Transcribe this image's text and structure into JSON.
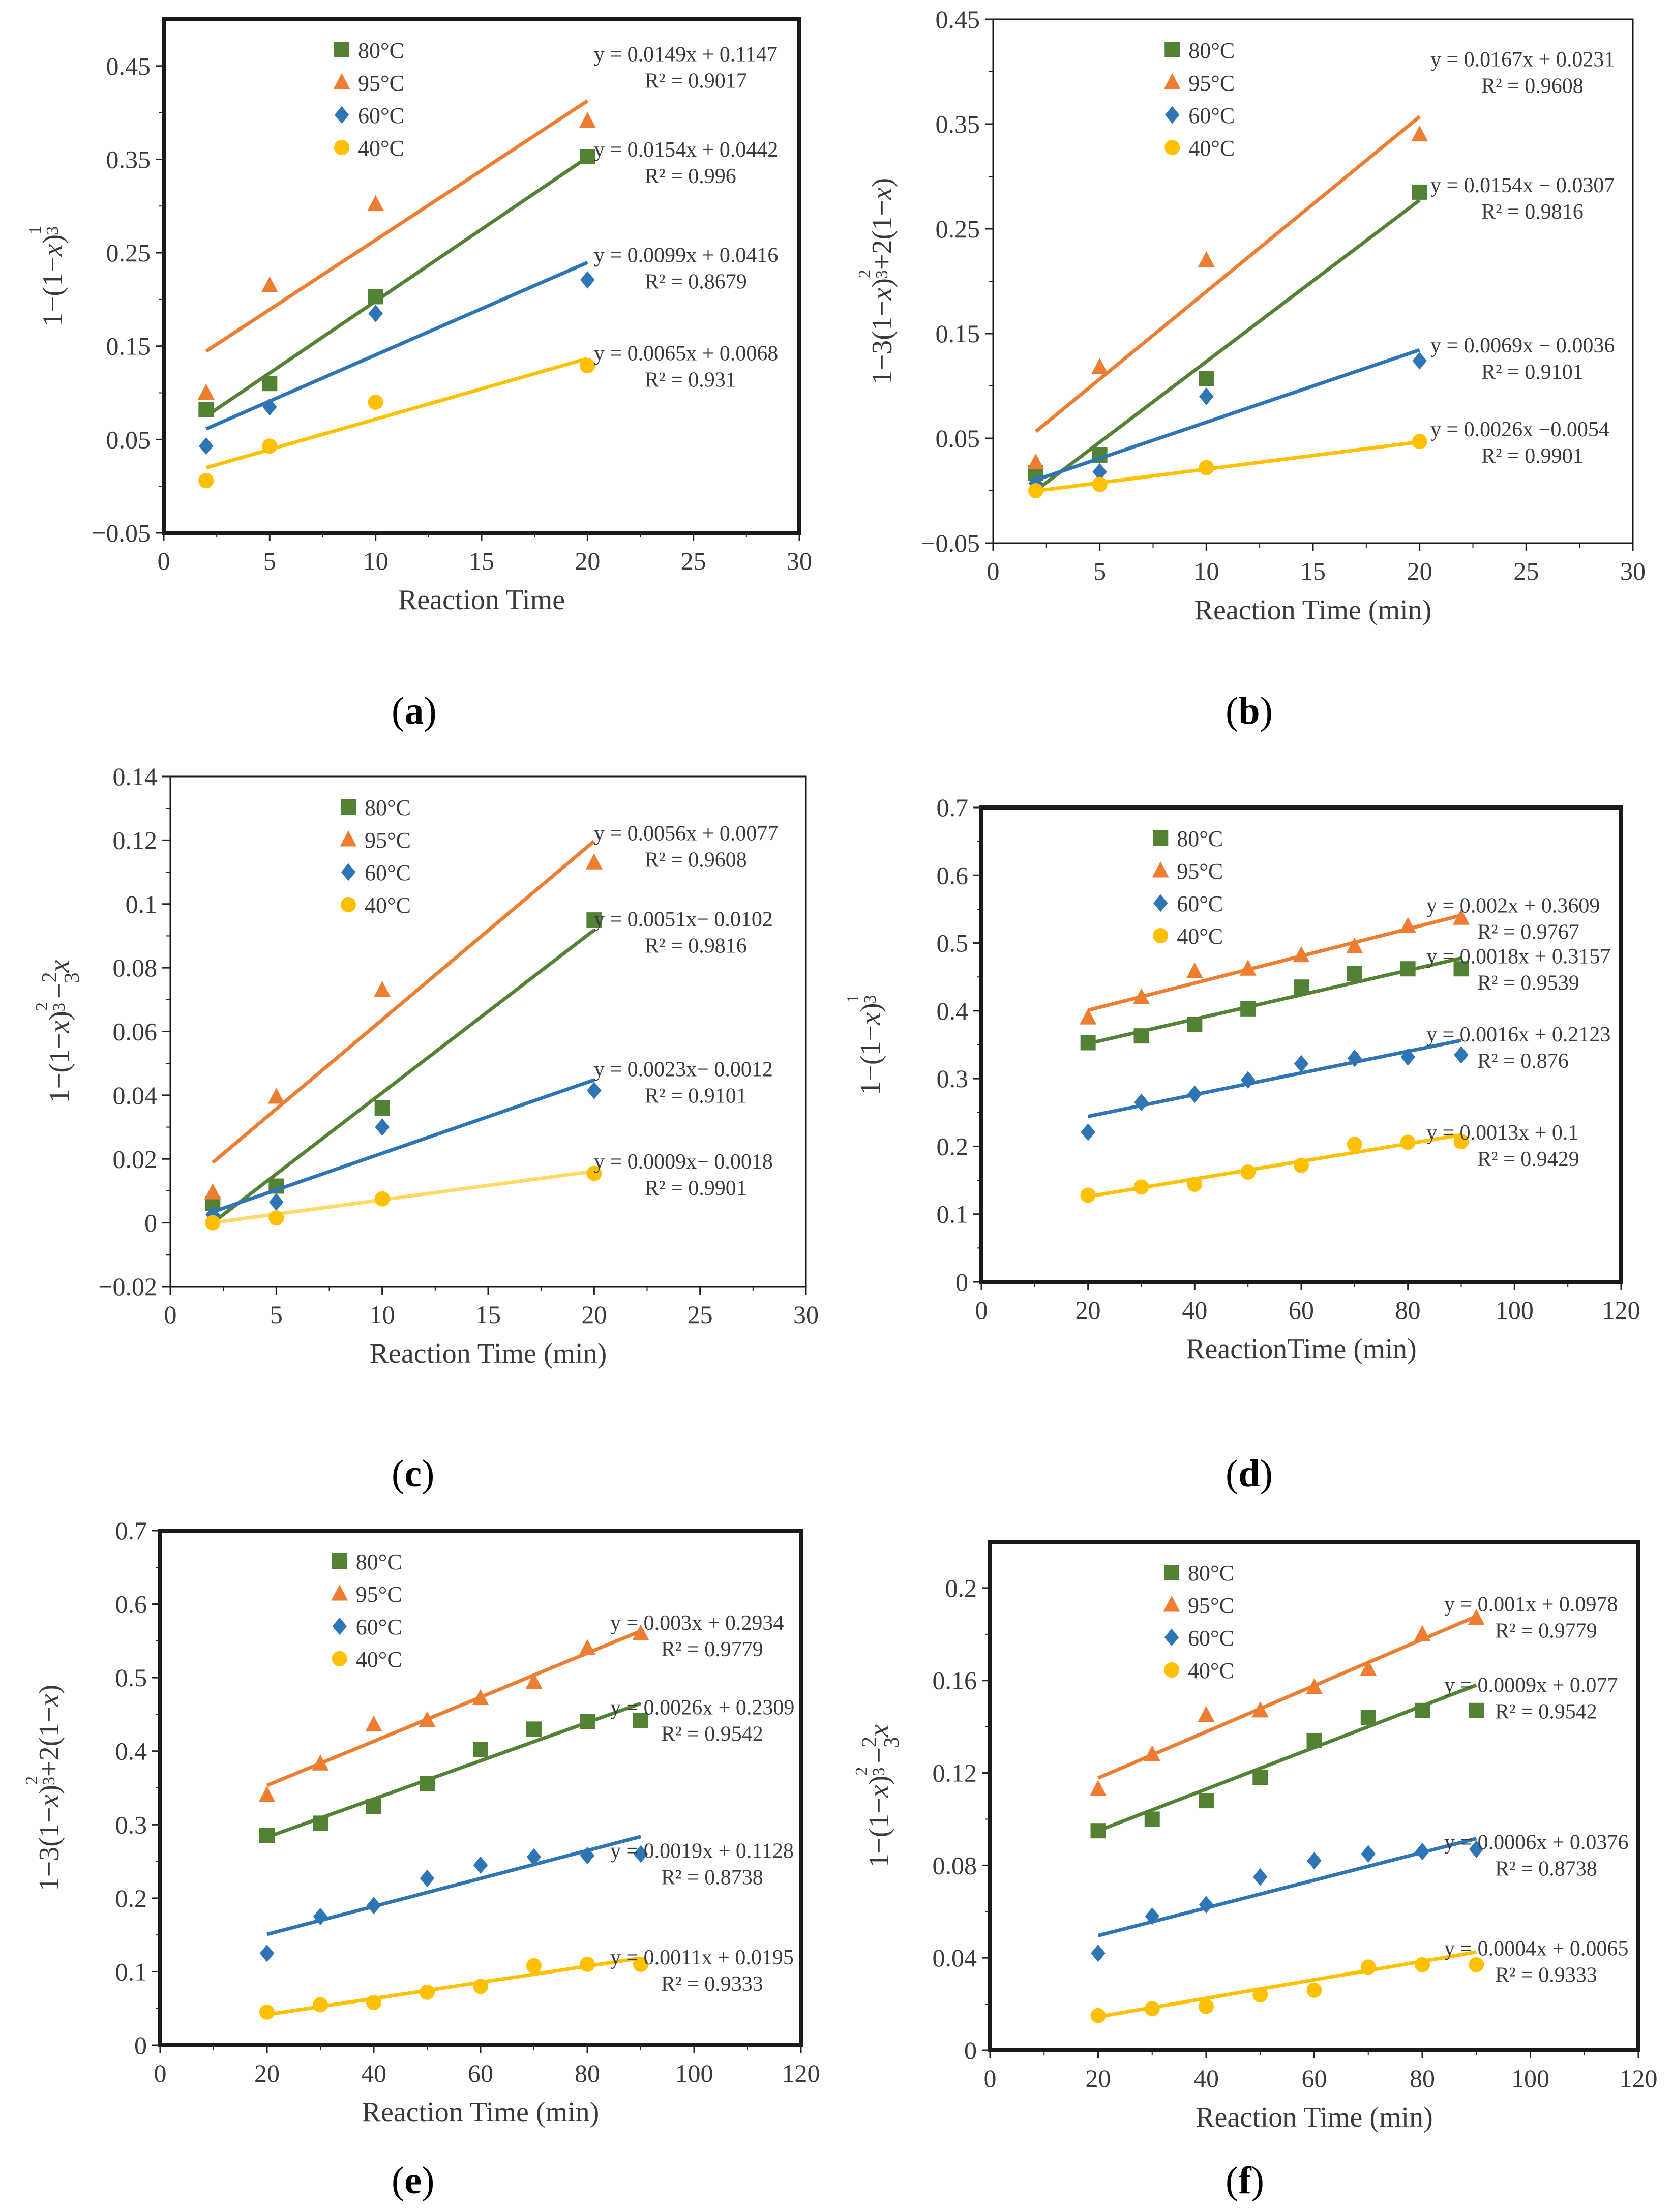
{
  "panels": [
    {
      "label_open": "(",
      "letter": "a",
      "label_close": ")"
    },
    {
      "label_open": "(",
      "letter": "b",
      "label_close": ")"
    },
    {
      "label_open": "(",
      "letter": "c",
      "label_close": ")"
    },
    {
      "label_open": "(",
      "letter": "d",
      "label_close": ")"
    },
    {
      "label_open": "(",
      "letter": "e",
      "label_close": ")"
    },
    {
      "label_open": "(",
      "letter": "f",
      "label_close": ")"
    }
  ],
  "colors": {
    "80C": "#548235",
    "95C": "#ed7d31",
    "60C": "#2e75b6",
    "40C": "#ffc000",
    "40C_line_c": "#ffd966"
  },
  "chart_data": [
    {
      "type": "scatter",
      "xlabel": "Reaction Time",
      "ylabel_parts": [
        "1−(1−",
        "x",
        ")",
        "1",
        "3"
      ],
      "xlim": [
        0,
        30
      ],
      "ylim": [
        -0.05,
        0.5
      ],
      "xticks": [
        "0",
        "5",
        "10",
        "15",
        "20",
        "25",
        "30"
      ],
      "yticks": [
        "−0.05",
        "0.05",
        "0.15",
        "0.25",
        "0.35",
        "0.45"
      ],
      "ytick_values": [
        -0.05,
        0.05,
        0.15,
        0.25,
        0.35,
        0.45
      ],
      "legend": [
        "80°C",
        "95°C",
        "60°C",
        "40°C"
      ],
      "series": [
        {
          "name": "80°C",
          "marker": "square",
          "x": [
            2,
            5,
            10,
            20
          ],
          "y": [
            0.082,
            0.11,
            0.203,
            0.353
          ],
          "fit": [
            0.0154,
            0.0442
          ],
          "eq": "y = 0.0154x + 0.0442",
          "r2": "R² = 0.996"
        },
        {
          "name": "95°C",
          "marker": "triangle",
          "x": [
            2,
            5,
            10,
            20
          ],
          "y": [
            0.1,
            0.215,
            0.302,
            0.391
          ],
          "fit": [
            0.0149,
            0.1147
          ],
          "eq": "y = 0.0149x + 0.1147",
          "r2": "R² = 0.9017"
        },
        {
          "name": "60°C",
          "marker": "diamond",
          "x": [
            2,
            5,
            10,
            20
          ],
          "y": [
            0.043,
            0.085,
            0.185,
            0.221
          ],
          "fit": [
            0.0099,
            0.0416
          ],
          "eq": "y = 0.0099x + 0.0416",
          "r2": "R² = 0.8679"
        },
        {
          "name": "40°C",
          "marker": "circle",
          "x": [
            2,
            5,
            10,
            20
          ],
          "y": [
            0.006,
            0.043,
            0.09,
            0.129
          ],
          "fit": [
            0.0065,
            0.0068
          ],
          "eq": "y = 0.0065x + 0.0068",
          "r2": "R² = 0.931"
        }
      ]
    },
    {
      "type": "scatter",
      "xlabel": "Reaction Time (min)",
      "ylabel_parts": [
        "1−3(1−",
        "x",
        ")",
        "2",
        "3",
        "+2(1−",
        "x",
        ")"
      ],
      "xlim": [
        0,
        30
      ],
      "ylim": [
        -0.05,
        0.45
      ],
      "xticks": [
        "0",
        "5",
        "10",
        "15",
        "20",
        "25",
        "30"
      ],
      "yticks": [
        "−0.05",
        "0.05",
        "0.15",
        "0.25",
        "0.35",
        "0.45"
      ],
      "ytick_values": [
        -0.05,
        0.05,
        0.15,
        0.25,
        0.35,
        0.45
      ],
      "legend": [
        "80°C",
        "95°C",
        "60°C",
        "40°C"
      ],
      "series": [
        {
          "name": "80°C",
          "marker": "square",
          "x": [
            2,
            5,
            10,
            20
          ],
          "y": [
            0.017,
            0.034,
            0.107,
            0.285
          ],
          "fit": [
            0.0154,
            -0.0307
          ],
          "eq": "y = 0.0154x − 0.0307",
          "r2": "R² = 0.9816"
        },
        {
          "name": "95°C",
          "marker": "triangle",
          "x": [
            2,
            5,
            10,
            20
          ],
          "y": [
            0.027,
            0.118,
            0.22,
            0.34
          ],
          "fit": [
            0.0167,
            0.0231
          ],
          "eq": "y = 0.0167x + 0.0231",
          "r2": "R² = 0.9608"
        },
        {
          "name": "60°C",
          "marker": "diamond",
          "x": [
            2,
            5,
            10,
            20
          ],
          "y": [
            0.007,
            0.018,
            0.09,
            0.124
          ],
          "fit": [
            0.0069,
            -0.0036
          ],
          "eq": "y = 0.0069x − 0.0036",
          "r2": "R² = 0.9101"
        },
        {
          "name": "40°C",
          "marker": "circle",
          "x": [
            2,
            5,
            10,
            20
          ],
          "y": [
            0.0,
            0.006,
            0.022,
            0.047
          ],
          "fit": [
            0.0026,
            -0.0054
          ],
          "eq": "y = 0.0026x −0.0054",
          "r2": "R² = 0.9901"
        }
      ]
    },
    {
      "type": "scatter",
      "xlabel": "Reaction Time (min)",
      "ylabel_parts": [
        "1−(1−",
        "x",
        ")",
        "2",
        "3",
        "−",
        "2",
        "3",
        "x"
      ],
      "xlim": [
        0,
        30
      ],
      "ylim": [
        -0.02,
        0.14
      ],
      "xticks": [
        "0",
        "5",
        "10",
        "15",
        "20",
        "25",
        "30"
      ],
      "yticks": [
        "−0.02",
        "0",
        "0.02",
        "0.04",
        "0.06",
        "0.08",
        "0.1",
        "0.12",
        "0.14"
      ],
      "ytick_values": [
        -0.02,
        0,
        0.02,
        0.04,
        0.06,
        0.08,
        0.1,
        0.12,
        0.14
      ],
      "legend": [
        "80°C",
        "95°C",
        "60°C",
        "40°C"
      ],
      "series": [
        {
          "name": "80°C",
          "marker": "square",
          "x": [
            2,
            5,
            10,
            20
          ],
          "y": [
            0.006,
            0.0115,
            0.036,
            0.095
          ],
          "fit": [
            0.0051,
            -0.0102
          ],
          "eq": "y = 0.0051x− 0.0102",
          "r2": "R² = 0.9816"
        },
        {
          "name": "95°C",
          "marker": "triangle",
          "x": [
            2,
            5,
            10,
            20
          ],
          "y": [
            0.0095,
            0.0395,
            0.073,
            0.113
          ],
          "fit": [
            0.0056,
            0.0077
          ],
          "eq": "y = 0.0056x + 0.0077",
          "r2": "R² = 0.9608"
        },
        {
          "name": "60°C",
          "marker": "diamond",
          "x": [
            2,
            5,
            10,
            20
          ],
          "y": [
            0.0025,
            0.0065,
            0.03,
            0.0415
          ],
          "fit": [
            0.0023,
            -0.0012
          ],
          "eq": "y = 0.0023x− 0.0012",
          "r2": "R² = 0.9101"
        },
        {
          "name": "40°C",
          "marker": "circle",
          "x": [
            2,
            5,
            10,
            20
          ],
          "y": [
            0.0,
            0.0015,
            0.0075,
            0.0155
          ],
          "fit": [
            0.0009,
            -0.0018
          ],
          "eq": "y = 0.0009x− 0.0018",
          "r2": "R² = 0.9901"
        }
      ]
    },
    {
      "type": "scatter",
      "xlabel": "ReactionTime (min)",
      "ylabel_parts": [
        "1−(1−",
        "x",
        ")",
        "1",
        "3"
      ],
      "xlim": [
        0,
        120
      ],
      "ylim": [
        0,
        0.7
      ],
      "xticks": [
        "0",
        "20",
        "40",
        "60",
        "80",
        "100",
        "120"
      ],
      "yticks": [
        "0",
        "0.1",
        "0.2",
        "0.3",
        "0.4",
        "0.5",
        "0.6",
        "0.7"
      ],
      "ytick_values": [
        0,
        0.1,
        0.2,
        0.3,
        0.4,
        0.5,
        0.6,
        0.7
      ],
      "legend": [
        "80°C",
        "95°C",
        "60°C",
        "40°C"
      ],
      "series": [
        {
          "name": "80°C",
          "marker": "square",
          "x": [
            20,
            30,
            40,
            50,
            60,
            70,
            80,
            90
          ],
          "y": [
            0.353,
            0.363,
            0.38,
            0.403,
            0.435,
            0.455,
            0.462,
            0.462
          ],
          "fit": [
            0.0018,
            0.3157
          ],
          "eq": "y = 0.0018x + 0.3157",
          "r2": "R² = 0.9539"
        },
        {
          "name": "95°C",
          "marker": "triangle",
          "x": [
            20,
            30,
            40,
            50,
            60,
            70,
            80,
            90
          ],
          "y": [
            0.39,
            0.42,
            0.458,
            0.462,
            0.482,
            0.495,
            0.525,
            0.537
          ],
          "fit": [
            0.002,
            0.3609
          ],
          "eq": "y = 0.002x + 0.3609",
          "r2": "R² = 0.9767"
        },
        {
          "name": "60°C",
          "marker": "diamond",
          "x": [
            20,
            30,
            40,
            50,
            60,
            70,
            80,
            90
          ],
          "y": [
            0.221,
            0.265,
            0.277,
            0.298,
            0.322,
            0.33,
            0.332,
            0.335
          ],
          "fit": [
            0.0016,
            0.2123
          ],
          "eq": "y = 0.0016x + 0.2123",
          "r2": "R² = 0.876"
        },
        {
          "name": "40°C",
          "marker": "circle",
          "x": [
            20,
            30,
            40,
            50,
            60,
            70,
            80,
            90
          ],
          "y": [
            0.128,
            0.14,
            0.144,
            0.162,
            0.172,
            0.203,
            0.206,
            0.207
          ],
          "fit": [
            0.0013,
            0.1
          ],
          "eq": "y = 0.0013x + 0.1",
          "r2": "R² = 0.9429"
        }
      ]
    },
    {
      "type": "scatter",
      "xlabel": "Reaction Time (min)",
      "ylabel_parts": [
        "1−3(1−",
        "x",
        ")",
        "2",
        "3",
        "+2(1−",
        "x",
        ")"
      ],
      "xlim": [
        0,
        120
      ],
      "ylim": [
        0,
        0.7
      ],
      "xticks": [
        "0",
        "20",
        "40",
        "60",
        "80",
        "100",
        "120"
      ],
      "yticks": [
        "0",
        "0.1",
        "0.2",
        "0.3",
        "0.4",
        "0.5",
        "0.6",
        "0.7"
      ],
      "ytick_values": [
        0,
        0.1,
        0.2,
        0.3,
        0.4,
        0.5,
        0.6,
        0.7
      ],
      "legend": [
        "80°C",
        "95°C",
        "60°C",
        "40°C"
      ],
      "series": [
        {
          "name": "80°C",
          "marker": "square",
          "x": [
            20,
            30,
            40,
            50,
            60,
            70,
            80,
            90
          ],
          "y": [
            0.285,
            0.302,
            0.325,
            0.356,
            0.402,
            0.43,
            0.44,
            0.442
          ],
          "fit": [
            0.0026,
            0.2309
          ],
          "eq": "y = 0.0026x + 0.2309",
          "r2": "R² = 0.9542"
        },
        {
          "name": "95°C",
          "marker": "triangle",
          "x": [
            20,
            30,
            40,
            50,
            60,
            70,
            80,
            90
          ],
          "y": [
            0.34,
            0.383,
            0.436,
            0.442,
            0.472,
            0.494,
            0.54,
            0.56
          ],
          "fit": [
            0.003,
            0.2934
          ],
          "eq": "y = 0.003x + 0.2934",
          "r2": "R² = 0.9779"
        },
        {
          "name": "60°C",
          "marker": "diamond",
          "x": [
            20,
            30,
            40,
            50,
            60,
            70,
            80,
            90
          ],
          "y": [
            0.125,
            0.175,
            0.19,
            0.227,
            0.245,
            0.256,
            0.258,
            0.26
          ],
          "fit": [
            0.0019,
            0.1128
          ],
          "eq": "y = 0.0019x + 0.1128",
          "r2": "R² = 0.8738"
        },
        {
          "name": "40°C",
          "marker": "circle",
          "x": [
            20,
            30,
            40,
            50,
            60,
            70,
            80,
            90
          ],
          "y": [
            0.045,
            0.055,
            0.058,
            0.072,
            0.08,
            0.108,
            0.11,
            0.11
          ],
          "fit": [
            0.0011,
            0.0195
          ],
          "eq": "y = 0.0011x + 0.0195",
          "r2": "R² = 0.9333"
        }
      ]
    },
    {
      "type": "scatter",
      "xlabel": "Reaction Time (min)",
      "ylabel_parts": [
        "1−(1−",
        "x",
        ")",
        "2",
        "3",
        "−",
        "2",
        "3",
        "x"
      ],
      "xlim": [
        0,
        120
      ],
      "ylim": [
        0,
        0.22
      ],
      "xticks": [
        "0",
        "20",
        "40",
        "60",
        "80",
        "100",
        "120"
      ],
      "yticks": [
        "0",
        "0.04",
        "0.08",
        "0.12",
        "0.16",
        "0.2"
      ],
      "ytick_values": [
        0,
        0.04,
        0.08,
        0.12,
        0.16,
        0.2
      ],
      "legend": [
        "80°C",
        "95°C",
        "60°C",
        "40°C"
      ],
      "series": [
        {
          "name": "80°C",
          "marker": "square",
          "x": [
            20,
            30,
            40,
            50,
            60,
            70,
            80,
            90
          ],
          "y": [
            0.095,
            0.1,
            0.108,
            0.118,
            0.134,
            0.144,
            0.147,
            0.147
          ],
          "fit": [
            0.0009,
            0.077
          ],
          "eq": "y = 0.0009x + 0.077",
          "r2": "R² = 0.9542"
        },
        {
          "name": "95°C",
          "marker": "triangle",
          "x": [
            20,
            30,
            40,
            50,
            60,
            70,
            80,
            90
          ],
          "y": [
            0.113,
            0.128,
            0.145,
            0.147,
            0.157,
            0.165,
            0.18,
            0.187
          ],
          "fit": [
            0.001,
            0.0978
          ],
          "eq": "y = 0.001x + 0.0978",
          "r2": "R² = 0.9779"
        },
        {
          "name": "60°C",
          "marker": "diamond",
          "x": [
            20,
            30,
            40,
            50,
            60,
            70,
            80,
            90
          ],
          "y": [
            0.042,
            0.058,
            0.063,
            0.075,
            0.082,
            0.085,
            0.086,
            0.087
          ],
          "fit": [
            0.0006,
            0.0376
          ],
          "eq": "y = 0.0006x + 0.0376",
          "r2": "R² = 0.8738"
        },
        {
          "name": "40°C",
          "marker": "circle",
          "x": [
            20,
            30,
            40,
            50,
            60,
            70,
            80,
            90
          ],
          "y": [
            0.015,
            0.018,
            0.019,
            0.024,
            0.026,
            0.036,
            0.037,
            0.037
          ],
          "fit": [
            0.0004,
            0.0065
          ],
          "eq": "y = 0.0004x + 0.0065",
          "r2": "R² = 0.9333"
        }
      ]
    }
  ]
}
